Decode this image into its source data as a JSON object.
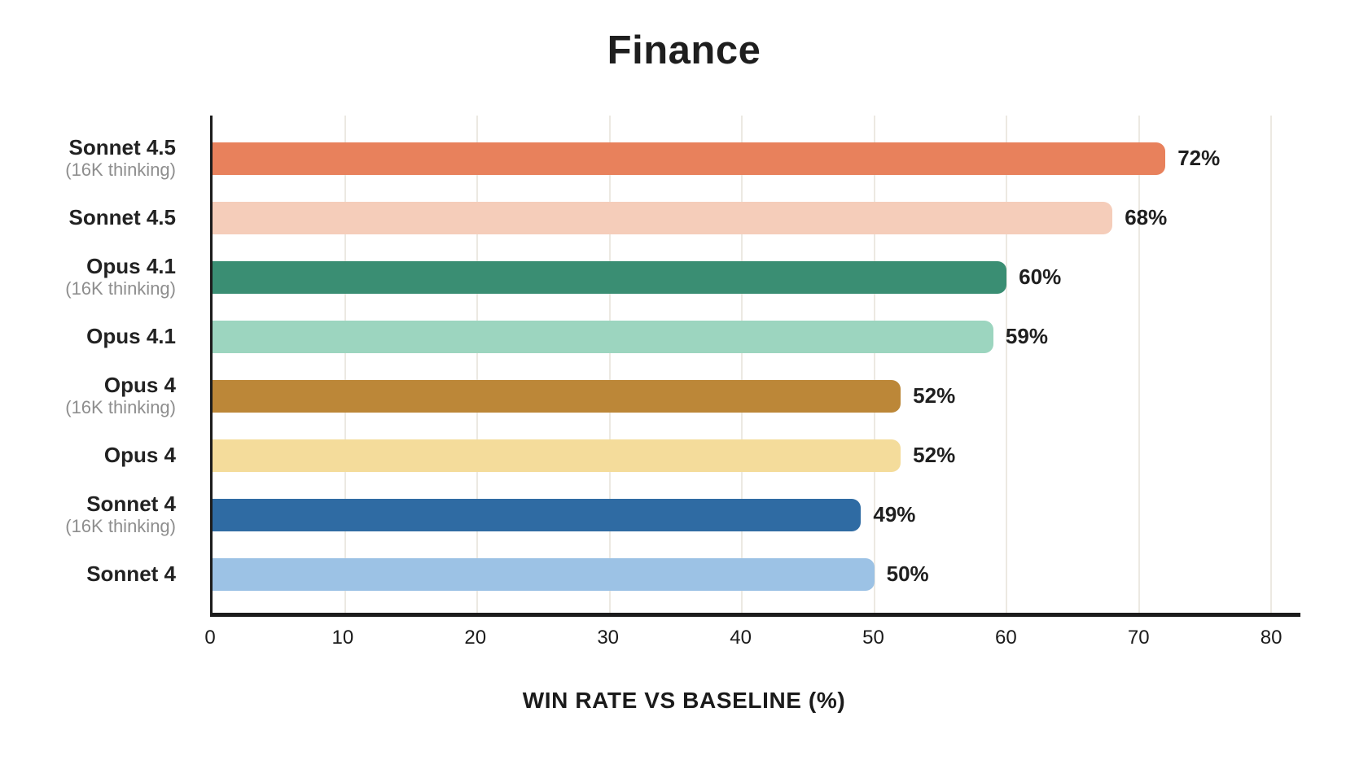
{
  "chart_data": {
    "type": "bar",
    "orientation": "horizontal",
    "title": "Finance",
    "xlabel": "WIN RATE VS BASELINE (%)",
    "xlim": [
      0,
      82.2
    ],
    "xticks": [
      0,
      10,
      20,
      30,
      40,
      50,
      60,
      70,
      80
    ],
    "grid": "vertical",
    "legend": "none",
    "rows": [
      {
        "label": "Sonnet 4.5",
        "sublabel": "(16K thinking)",
        "value": 72,
        "value_label": "72%",
        "color": "#E8815C"
      },
      {
        "label": "Sonnet 4.5",
        "sublabel": "",
        "value": 68,
        "value_label": "68%",
        "color": "#F5CDBA"
      },
      {
        "label": "Opus 4.1",
        "sublabel": "(16K thinking)",
        "value": 60,
        "value_label": "60%",
        "color": "#3A8E73"
      },
      {
        "label": "Opus 4.1",
        "sublabel": "",
        "value": 59,
        "value_label": "59%",
        "color": "#9CD5BF"
      },
      {
        "label": "Opus 4",
        "sublabel": "(16K thinking)",
        "value": 52,
        "value_label": "52%",
        "color": "#BC8738"
      },
      {
        "label": "Opus 4",
        "sublabel": "",
        "value": 52,
        "value_label": "52%",
        "color": "#F4DC9B"
      },
      {
        "label": "Sonnet 4",
        "sublabel": "(16K thinking)",
        "value": 49,
        "value_label": "49%",
        "color": "#2F6BA3"
      },
      {
        "label": "Sonnet 4",
        "sublabel": "",
        "value": 50,
        "value_label": "50%",
        "color": "#9CC2E5"
      }
    ],
    "colors": {
      "background": "#FFFFFF",
      "axis": "#1C1C1C",
      "grid": "#ECE9E2",
      "text": "#1F1F1F",
      "sublabel_text": "#8E8E8E"
    }
  }
}
